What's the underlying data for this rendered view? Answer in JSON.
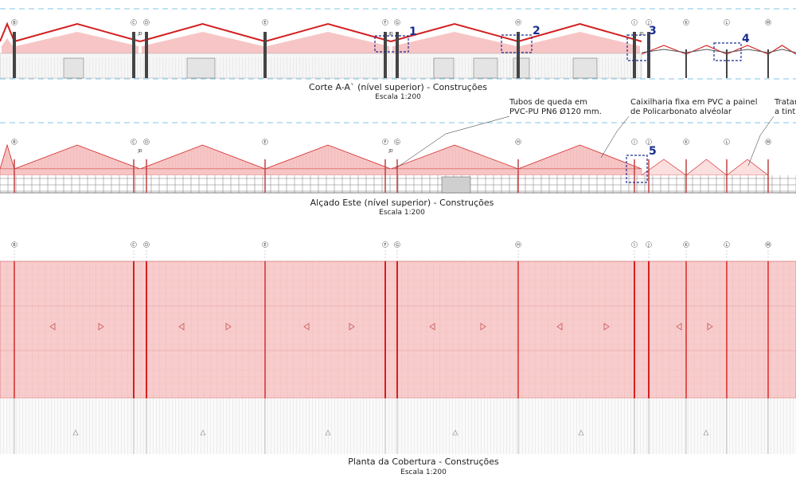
{
  "axes": [
    "B",
    "C",
    "D",
    "E",
    "F",
    "G",
    "H",
    "I",
    "J",
    "K",
    "L",
    "M"
  ],
  "joint_label": "JD",
  "section": {
    "title": "Corte A-A` (nível superior) - Construções",
    "scale": "Escala 1:200",
    "details": [
      "1",
      "2",
      "3",
      "4"
    ]
  },
  "elevation": {
    "title": "Alçado Este (nível superior) - Construções",
    "scale": "Escala 1:200",
    "detail": "5",
    "notes": {
      "downpipe_line1": "Tubos de queda em",
      "downpipe_line2": "PVC-PU PN6 Ø120 mm.",
      "frame_line1": "Caixilharia fixa em PVC a painel",
      "frame_line2": "de Policarbonato alvéolar",
      "treat_line1": "Tratar",
      "treat_line2": "a tint"
    }
  },
  "plan": {
    "title": "Planta da Cobertura - Construções",
    "scale": "Escala 1:200"
  },
  "colors": {
    "roof_fill": "#f7c5c5",
    "roof_line": "#d42020",
    "detail_box": "#1a2d8f",
    "dashed_line": "#5ab4e0"
  }
}
